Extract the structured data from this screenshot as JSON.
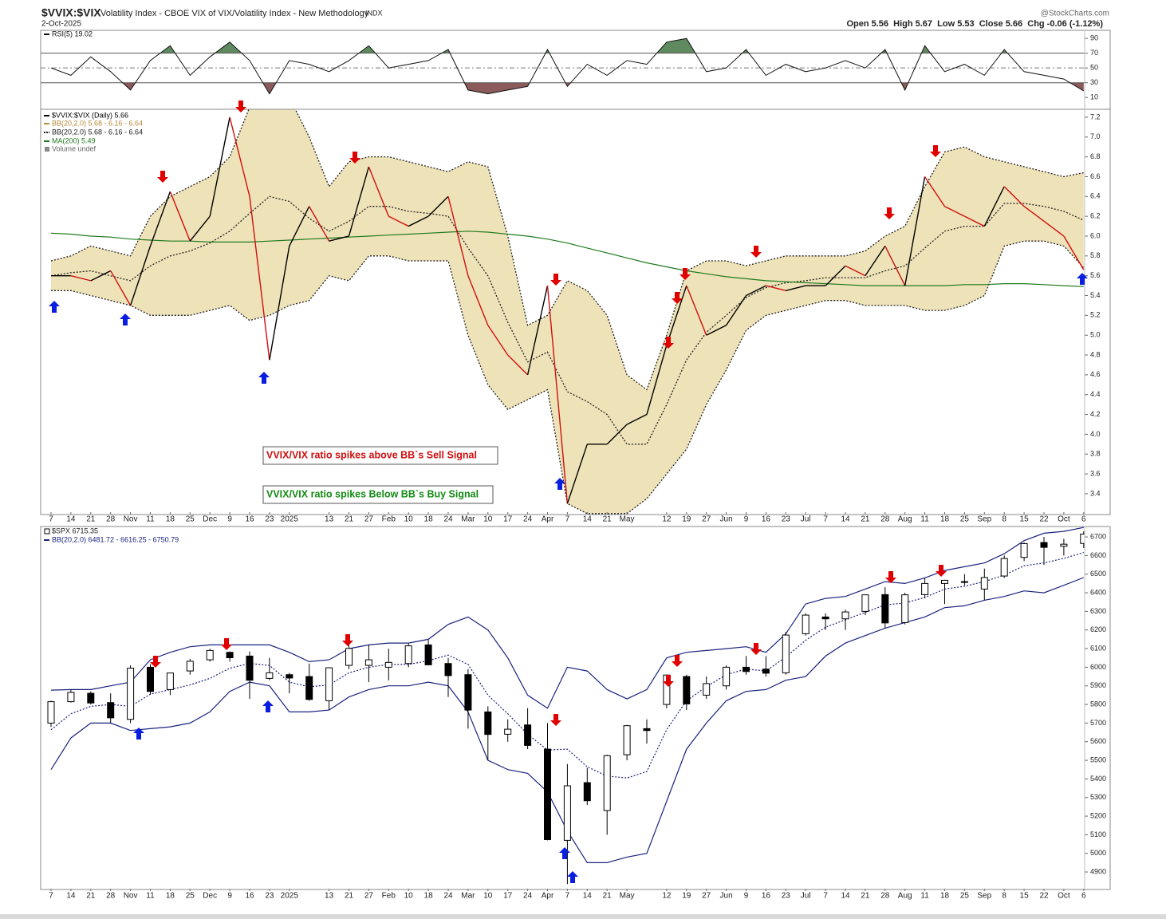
{
  "header": {
    "symbol": "$VVIX:$VIX",
    "description": "Volatility Index - CBOE VIX of VIX/Volatility Index - New Methodology",
    "exchange": "INDX",
    "date": "2-Oct-2025",
    "source": "@StockCharts.com",
    "quote": "Open 5.56  High 5.67  Low 5.53  Close 5.66  Chg -0.06 (-1.12%)"
  },
  "chart_data": [
    {
      "type": "line",
      "ylim": [
        -6,
        101
      ],
      "yticks": [
        10,
        30,
        50,
        70,
        90
      ],
      "series": [
        {
          "name": "RSI(5) 19.02",
          "color": "#111111",
          "up_fill": "#5f8a5f",
          "down_fill": "#8b5a5a",
          "values": [
            50,
            40,
            65,
            45,
            20,
            60,
            80,
            40,
            65,
            85,
            60,
            15,
            60,
            55,
            45,
            60,
            80,
            50,
            55,
            60,
            75,
            20,
            15,
            20,
            25,
            75,
            25,
            55,
            40,
            60,
            55,
            85,
            90,
            45,
            50,
            75,
            40,
            55,
            45,
            50,
            60,
            50,
            75,
            20,
            80,
            45,
            55,
            40,
            75,
            45,
            40,
            35,
            19.02
          ]
        }
      ]
    },
    {
      "type": "line",
      "ylim": [
        3.19,
        7.28
      ],
      "yticks": [
        3.4,
        3.6,
        3.8,
        {
          "value": 4,
          "label": "4.0"
        },
        4.2,
        4.4,
        4.6,
        4.8,
        {
          "value": 5,
          "label": "5.0"
        },
        5.2,
        5.4,
        5.6,
        5.8,
        {
          "value": 6,
          "label": "6.0"
        },
        6.2,
        6.4,
        6.6,
        6.8,
        {
          "value": 7,
          "label": "7.0"
        },
        7.2
      ],
      "categories": [
        "7",
        "14",
        "21",
        "28",
        "Nov",
        "11",
        "18",
        "25",
        "Dec",
        "9",
        "16",
        "23",
        "2025",
        null,
        "13",
        "21",
        "27",
        "Feb",
        "10",
        "18",
        "24",
        "Mar",
        "10",
        "17",
        "24",
        "Apr",
        "7",
        "14",
        "21",
        "May",
        null,
        "12",
        "19",
        "27",
        "Jun",
        "9",
        "16",
        "23",
        "Jul",
        "7",
        "14",
        "21",
        "28",
        "Aug",
        "11",
        "18",
        "25",
        "Sep",
        "8",
        "15",
        "22",
        "Oct",
        "6"
      ],
      "series": [
        {
          "name": "$VVIX:$VIX (Daily) 5.66",
          "color": "#000000",
          "down_color": "#d01010",
          "values": [
            5.6,
            5.6,
            5.55,
            5.65,
            5.3,
            5.9,
            6.45,
            5.95,
            6.2,
            7.2,
            6.4,
            4.75,
            5.9,
            6.3,
            5.95,
            6.0,
            6.7,
            6.2,
            6.1,
            6.2,
            6.4,
            5.6,
            5.1,
            4.8,
            4.6,
            5.5,
            3.3,
            3.9,
            3.9,
            4.1,
            4.2,
            4.9,
            5.5,
            5.0,
            5.1,
            5.4,
            5.5,
            5.45,
            5.5,
            5.5,
            5.7,
            5.6,
            5.9,
            5.5,
            6.6,
            6.3,
            6.2,
            6.1,
            6.5,
            6.3,
            6.15,
            6.0,
            5.66
          ]
        },
        {
          "name": "MA(200) 5.49",
          "color": "#1f7a1f",
          "values": [
            6.03,
            6.02,
            6.0,
            5.99,
            5.97,
            5.96,
            5.95,
            5.95,
            5.94,
            5.94,
            5.94,
            5.95,
            5.96,
            5.97,
            5.98,
            5.99,
            6.0,
            6.01,
            6.02,
            6.03,
            6.04,
            6.05,
            6.04,
            6.02,
            6.0,
            5.97,
            5.93,
            5.88,
            5.83,
            5.78,
            5.73,
            5.69,
            5.65,
            5.62,
            5.59,
            5.57,
            5.55,
            5.54,
            5.53,
            5.52,
            5.51,
            5.5,
            5.5,
            5.5,
            5.5,
            5.5,
            5.51,
            5.51,
            5.52,
            5.52,
            5.51,
            5.5,
            5.49
          ]
        }
      ],
      "bands": {
        "fill_name": "BB(20,2.0) 5.68 - 6.16 - 6.64",
        "line_name": "BB(20,2.0) 5.68 - 6.16 - 6.64",
        "fill": "#eee2b8",
        "color": "#222222",
        "upper": [
          5.75,
          5.8,
          5.9,
          5.85,
          5.8,
          6.2,
          6.4,
          6.5,
          6.6,
          6.8,
          7.3,
          7.6,
          7.4,
          7.0,
          6.5,
          6.75,
          6.8,
          6.8,
          6.75,
          6.7,
          6.65,
          6.75,
          6.7,
          6.0,
          5.1,
          5.2,
          5.55,
          5.45,
          5.2,
          4.6,
          4.45,
          5.0,
          5.65,
          5.75,
          5.75,
          5.7,
          5.75,
          5.8,
          5.8,
          5.8,
          5.8,
          5.85,
          6.0,
          6.1,
          6.5,
          6.85,
          6.9,
          6.8,
          6.75,
          6.7,
          6.65,
          6.6,
          6.64
        ],
        "middle": [
          5.6,
          5.63,
          5.65,
          5.6,
          5.55,
          5.7,
          5.8,
          5.85,
          5.93,
          6.05,
          6.23,
          6.4,
          6.35,
          6.18,
          6.05,
          6.15,
          6.3,
          6.3,
          6.25,
          6.23,
          6.2,
          5.88,
          5.6,
          5.13,
          4.73,
          4.83,
          4.43,
          4.33,
          4.2,
          3.9,
          3.9,
          4.3,
          4.75,
          5.03,
          5.2,
          5.38,
          5.48,
          5.53,
          5.55,
          5.58,
          5.58,
          5.58,
          5.65,
          5.7,
          5.88,
          6.05,
          6.1,
          6.1,
          6.33,
          6.33,
          6.3,
          6.25,
          6.16
        ],
        "lower": [
          5.45,
          5.45,
          5.4,
          5.35,
          5.3,
          5.2,
          5.2,
          5.2,
          5.25,
          5.3,
          5.15,
          5.2,
          5.3,
          5.35,
          5.6,
          5.55,
          5.8,
          5.8,
          5.75,
          5.75,
          5.75,
          5.0,
          4.5,
          4.25,
          4.35,
          4.45,
          3.3,
          3.2,
          3.2,
          3.2,
          3.35,
          3.6,
          3.85,
          4.3,
          4.65,
          5.05,
          5.2,
          5.25,
          5.3,
          5.35,
          5.35,
          5.3,
          5.3,
          5.3,
          5.25,
          5.25,
          5.3,
          5.4,
          5.9,
          5.95,
          5.95,
          5.9,
          5.68
        ]
      },
      "volume_label": "Volume undef",
      "annotations": [
        {
          "text": "VVIX/VIX ratio spikes above BB`s Sell Signal",
          "color": "#d01010"
        },
        {
          "text": "VVIX/VIX ratio spikes Below BB`s Buy Signal",
          "color": "#138a13"
        }
      ]
    },
    {
      "type": "candlestick",
      "ylim": [
        4806,
        6756
      ],
      "yticks": [
        4900,
        5000,
        5100,
        5200,
        5300,
        5400,
        5500,
        5600,
        5700,
        5800,
        5900,
        6000,
        6100,
        6200,
        6300,
        6400,
        6500,
        6600,
        6700
      ],
      "categories": [
        "7",
        "14",
        "21",
        "28",
        "Nov",
        "11",
        "18",
        "25",
        "Dec",
        "9",
        "16",
        "23",
        "2025",
        null,
        "13",
        "21",
        "27",
        "Feb",
        "10",
        "18",
        "24",
        "Mar",
        "10",
        "17",
        "24",
        "Apr",
        "7",
        "14",
        "21",
        "May",
        null,
        "12",
        "19",
        "27",
        "Jun",
        "9",
        "16",
        "23",
        "Jul",
        "7",
        "14",
        "21",
        "28",
        "Aug",
        "11",
        "18",
        "25",
        "Sep",
        "8",
        "15",
        "22",
        "Oct",
        "6"
      ],
      "series": [
        {
          "name": "$SPX 6715.35",
          "color": "#000000",
          "open": [
            5700,
            5815,
            5860,
            5810,
            5720,
            6000,
            5880,
            5980,
            6040,
            6080,
            6060,
            5940,
            5960,
            5950,
            5820,
            6010,
            6010,
            6000,
            6020,
            6120,
            6020,
            5960,
            5760,
            5640,
            5690,
            5560,
            5070,
            5380,
            5230,
            5530,
            5670,
            5800,
            5950,
            5850,
            5900,
            6000,
            5990,
            5970,
            6180,
            6270,
            6260,
            6300,
            6390,
            6240,
            6390,
            6450,
            6460,
            6420,
            6490,
            6590,
            6670,
            6650,
            6665
          ],
          "high": [
            5820,
            5880,
            5870,
            5860,
            6010,
            6017,
            5970,
            6045,
            6099,
            6085,
            6085,
            6050,
            5970,
            6020,
            6000,
            6130,
            6120,
            6100,
            6127,
            6147,
            6050,
            5990,
            5790,
            5720,
            5780,
            5700,
            5480,
            5460,
            5530,
            5690,
            5720,
            5960,
            5960,
            5950,
            6010,
            6060,
            6060,
            6190,
            6290,
            6290,
            6310,
            6390,
            6430,
            6400,
            6480,
            6470,
            6500,
            6530,
            6600,
            6670,
            6700,
            6690,
            6730
          ],
          "low": [
            5680,
            5810,
            5800,
            5700,
            5700,
            5853,
            5850,
            5960,
            6030,
            6030,
            5830,
            5930,
            5860,
            5820,
            5770,
            5990,
            5920,
            5930,
            6000,
            6010,
            5840,
            5670,
            5500,
            5600,
            5560,
            5070,
            4835,
            5260,
            5100,
            5500,
            5590,
            5780,
            5770,
            5830,
            5880,
            5960,
            5950,
            5960,
            6170,
            6200,
            6200,
            6280,
            6210,
            6230,
            6370,
            6340,
            6440,
            6360,
            6480,
            6570,
            6550,
            6600,
            6640
          ],
          "close": [
            5815,
            5865,
            5808,
            5728,
            5995,
            5870,
            5969,
            6032,
            6090,
            6051,
            5930,
            5970,
            5942,
            5827,
            5997,
            6101,
            6040,
            6026,
            6115,
            6013,
            5955,
            5770,
            5639,
            5667,
            5580,
            5074,
            5363,
            5283,
            5525,
            5686,
            5660,
            5958,
            5803,
            5912,
            6000,
            5977,
            5968,
            6173,
            6280,
            6260,
            6297,
            6389,
            6238,
            6389,
            6450,
            6467,
            6460,
            6482,
            6584,
            6664,
            6644,
            6661,
            6715.35
          ]
        }
      ],
      "bands": {
        "line_name": "BB(20,2.0) 6481.72 - 6616.25 - 6750.79",
        "color": "#1a237e",
        "upper": [
          5877,
          5880,
          5880,
          5900,
          5920,
          6040,
          6080,
          6110,
          6120,
          6120,
          6120,
          6120,
          6080,
          6030,
          6040,
          6100,
          6120,
          6130,
          6130,
          6150,
          6230,
          6270,
          6200,
          6050,
          5850,
          5780,
          6000,
          5980,
          5880,
          5830,
          5880,
          6050,
          6080,
          6090,
          6100,
          6110,
          6080,
          6180,
          6340,
          6370,
          6380,
          6420,
          6460,
          6450,
          6480,
          6520,
          6540,
          6560,
          6610,
          6680,
          6720,
          6730,
          6750.79
        ],
        "middle": [
          5664,
          5750,
          5790,
          5800,
          5790,
          5855,
          5880,
          5905,
          5940,
          5995,
          6020,
          6010,
          5920,
          5895,
          5905,
          5970,
          6000,
          6015,
          6015,
          6035,
          6065,
          6015,
          5850,
          5750,
          5640,
          5555,
          5560,
          5465,
          5415,
          5405,
          5440,
          5665,
          5820,
          5895,
          5960,
          5990,
          5980,
          6055,
          6145,
          6215,
          6255,
          6295,
          6335,
          6345,
          6375,
          6420,
          6435,
          6460,
          6495,
          6545,
          6560,
          6585,
          6616.25
        ],
        "lower": [
          5450,
          5620,
          5700,
          5700,
          5660,
          5670,
          5680,
          5700,
          5760,
          5870,
          5920,
          5900,
          5760,
          5760,
          5770,
          5840,
          5880,
          5900,
          5900,
          5920,
          5900,
          5760,
          5500,
          5450,
          5430,
          5330,
          5120,
          4950,
          4950,
          4980,
          5000,
          5280,
          5560,
          5700,
          5820,
          5870,
          5880,
          5930,
          5950,
          6060,
          6130,
          6170,
          6210,
          6240,
          6270,
          6320,
          6330,
          6360,
          6380,
          6410,
          6400,
          6440,
          6481.72
        ]
      }
    }
  ]
}
